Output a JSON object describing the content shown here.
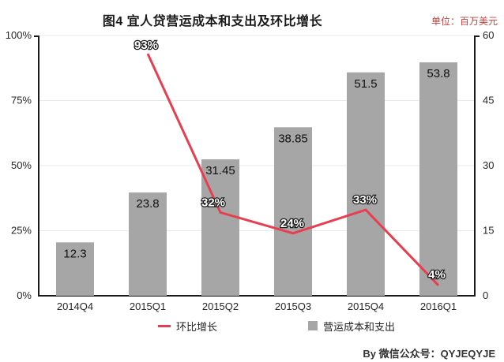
{
  "header": {
    "title": "图4  宜人贷营运成本和支出及环比增长",
    "unit_label": "单位：百万美元"
  },
  "chart_data": {
    "type": "bar",
    "combo": "bar+line",
    "title": "图4 宜人贷营运成本和支出及环比增长",
    "unit": "百万美元",
    "categories": [
      "2014Q4",
      "2015Q1",
      "2015Q2",
      "2015Q3",
      "2015Q4",
      "2016Q1"
    ],
    "series": [
      {
        "name": "营运成本和支出",
        "type": "bar",
        "axis": "right",
        "values": [
          12.3,
          23.8,
          31.45,
          38.85,
          51.5,
          53.8
        ],
        "labels": [
          "12.3",
          "23.8",
          "31.45",
          "38.85",
          "51.5",
          "53.8"
        ],
        "color": "#a6a6a6"
      },
      {
        "name": "环比增长",
        "type": "line",
        "axis": "left",
        "values": [
          null,
          93,
          32,
          24,
          33,
          4
        ],
        "labels": [
          "93%",
          "32%",
          "24%",
          "33%",
          "4%"
        ],
        "color": "#e83e4f"
      }
    ],
    "left_axis": {
      "min": 0,
      "max": 100,
      "ticks": [
        "0%",
        "25%",
        "50%",
        "75%",
        "100%"
      ]
    },
    "right_axis": {
      "min": 0,
      "max": 60,
      "ticks": [
        "0",
        "15",
        "30",
        "45",
        "60"
      ]
    },
    "grid": "horizontal gridlines at 25/50/75/100 of left axis",
    "legend_position": "bottom"
  },
  "legend": {
    "line_label": "环比增长",
    "bar_label": "营运成本和支出"
  },
  "footer": {
    "byline": "By  微信公众号：QYJEQYJE"
  },
  "colors": {
    "bar": "#a6a6a6",
    "line": "#e83e4f",
    "grid": "#e9e9e9",
    "axis": "#1a1a1a",
    "text": "#262626",
    "pct_label_fill": "#ffffff",
    "pct_label_outline": "#1a1a1a",
    "unit": "#c5403d",
    "byline": "#333333"
  }
}
